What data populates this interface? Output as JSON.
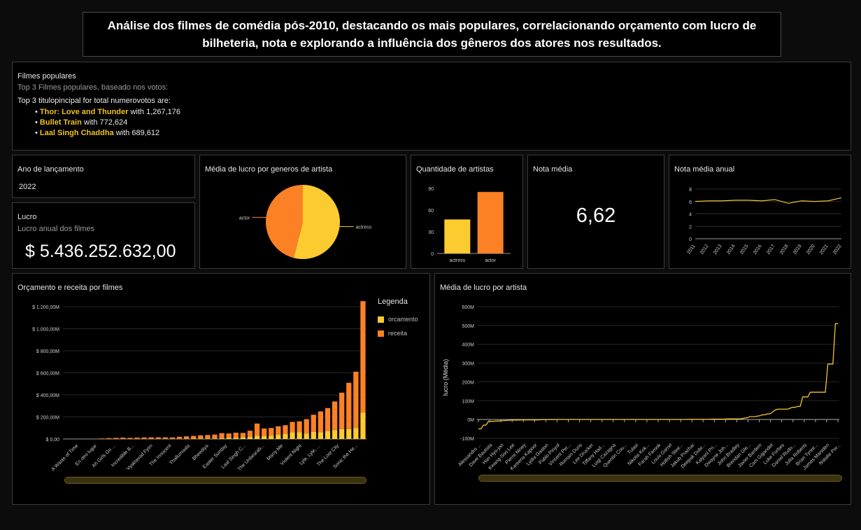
{
  "header": {
    "title": "Análise dos filmes de comédia pós-2010, destacando os mais populares, correlacionando orçamento com lucro de bilheteria, nota e explorando a influência dos gêneros dos atores nos resultados."
  },
  "popular": {
    "title": "Filmes populares",
    "subtitle": "Top 3 Filmes populares, baseado nos votos:",
    "intro": "Top 3 titulopincipal for total numerovotos are:",
    "items": [
      {
        "name": "Thor: Love and Thunder",
        "suffix": " with 1,267,176"
      },
      {
        "name": "Bullet Train",
        "suffix": " with 772,624"
      },
      {
        "name": "Laal Singh Chaddha",
        "suffix": " with 689,612"
      }
    ]
  },
  "year": {
    "title": "Ano de lançamento",
    "value": "2022"
  },
  "profit": {
    "title": "Lucro",
    "subtitle": "Lucro anual dos filmes",
    "value": "$ 5.436.252.632,00"
  },
  "pie": {
    "title": "Média de lucro por generos de artista"
  },
  "count": {
    "title": "Quantidade de artistas"
  },
  "rating": {
    "title": "Nota média",
    "value": "6,62"
  },
  "annual": {
    "title": "Nota média anual"
  },
  "budget": {
    "title": "Orçamento e receita por filmes",
    "legend_title": "Legenda"
  },
  "avgprofit": {
    "title": "Média de lucro por artista"
  },
  "colors": {
    "yellow": "#fccb2f",
    "orange": "#fb8124",
    "line": "#f2c432"
  },
  "chart_data": [
    {
      "type": "pie",
      "title": "Média de lucro por generos de artista",
      "categories": [
        "actress",
        "actor"
      ],
      "values": [
        54,
        46
      ]
    },
    {
      "type": "bar",
      "title": "Quantidade de artistas",
      "categories": [
        "actress",
        "actor"
      ],
      "values": [
        47,
        85
      ],
      "yticks": [
        "0",
        "30",
        "60",
        "90"
      ],
      "ylim": [
        0,
        90
      ]
    },
    {
      "type": "line",
      "title": "Nota média anual",
      "x": [
        "2011",
        "2012",
        "2013",
        "2014",
        "2015",
        "2016",
        "2017",
        "2018",
        "2019",
        "2020",
        "2021",
        "2022"
      ],
      "values": [
        6.0,
        6.1,
        6.1,
        6.2,
        6.2,
        6.1,
        6.3,
        5.7,
        6.1,
        6.0,
        6.1,
        6.6
      ],
      "yticks": [
        "0",
        "2",
        "4",
        "6",
        "8"
      ],
      "ylim": [
        0,
        8
      ]
    },
    {
      "type": "bar",
      "title": "Orçamento e receita por filmes",
      "series": [
        {
          "name": "orcamento"
        },
        {
          "name": "receita"
        }
      ],
      "xlabels": [
        "A Waste of Time",
        "En otro lugar",
        "Ah Girls Go ...",
        "Incredible B...",
        "Vyaktavad Fyim",
        "The Innocent",
        "Thallumaala",
        "Bheediya",
        "Easter Sunday",
        "Laal Singh C...",
        "The Unbearab...",
        "Marry Me",
        "Violent Night",
        "Lyle, Lyle, ...",
        "The Lost City",
        "Sonic the He..."
      ],
      "orcamento": [
        0,
        0,
        0,
        0,
        0,
        0,
        0,
        0,
        0,
        0,
        0,
        0,
        0,
        0,
        0,
        0,
        0,
        2,
        3,
        3,
        4,
        5,
        8,
        10,
        12,
        15,
        20,
        30,
        25,
        30,
        40,
        45,
        60,
        60,
        50,
        65,
        60,
        70,
        80,
        90,
        90,
        100,
        240
      ],
      "receita": [
        0,
        0,
        0,
        0,
        0,
        5,
        8,
        10,
        12,
        10,
        12,
        14,
        15,
        15,
        15,
        14,
        20,
        22,
        25,
        30,
        32,
        35,
        45,
        40,
        45,
        40,
        55,
        110,
        70,
        70,
        75,
        80,
        95,
        100,
        130,
        155,
        190,
        210,
        260,
        330,
        420,
        510,
        1010
      ],
      "yticks": [
        "$ 0,00",
        "$ 200,00M",
        "$ 400,00M",
        "$ 600,00M",
        "$ 800,00M",
        "$ 1.000,00M",
        "$ 1.200,00M"
      ],
      "ylim": [
        0,
        1200
      ]
    },
    {
      "type": "line",
      "title": "Média de lucro por artista",
      "ylabel": "lucro (Média)",
      "xlabels": [
        "Alessandro ...",
        "Dave Bautista",
        "Han Hyo-joo",
        "Kwang-Soo Lee",
        "Pierre Niney",
        "Kareena Kapoor",
        "Lydia Gaston",
        "Pablo Pinyol",
        "Vincent Per...",
        "Romain Duris",
        "Lee Drucker",
        "Tiffany Had...",
        "Luigi Cazagna",
        "Quentin Cou...",
        "Tulasi",
        "Nikolai Kok...",
        "Farah Farook",
        "Louis Garrel",
        "Hollish Stee...",
        "Jakub Prachar",
        "Deepak Dobr...",
        "Kalyani Pri...",
        "Dwayne Joh...",
        "John Bradley",
        "Brendan Gle...",
        "Javier Bardem",
        "Cam Gigandet",
        "Luke Forbes",
        "Daniel Rudo...",
        "Julia Roberts",
        "Brian Tyree...",
        "James Marsden",
        "Natalie Por..."
      ],
      "values": [
        -50,
        -50,
        -30,
        -30,
        -10,
        -10,
        -10,
        -8,
        -8,
        -7,
        -6,
        -5,
        -4,
        -3,
        -3,
        -3,
        -3,
        -2,
        -2,
        -2,
        -2,
        -2,
        -2,
        -2,
        -2,
        -1,
        -1,
        -1,
        -1,
        -1,
        -1,
        0,
        0,
        0,
        0,
        0,
        0,
        0,
        0,
        0,
        0,
        0,
        0,
        0,
        0,
        0,
        0,
        0,
        0,
        0,
        0,
        0,
        0,
        0,
        0,
        0,
        0,
        0,
        0,
        0,
        0,
        0,
        0,
        0,
        0,
        0,
        0,
        0,
        0,
        0,
        0,
        0,
        0,
        0,
        0,
        0,
        0,
        0,
        0,
        0,
        0,
        0,
        0,
        0,
        1,
        1,
        1,
        1,
        1,
        1,
        1,
        1,
        1,
        2,
        2,
        2,
        2,
        2,
        2,
        3,
        3,
        3,
        3,
        3,
        3,
        5,
        8,
        10,
        15,
        15,
        15,
        18,
        20,
        25,
        25,
        30,
        30,
        40,
        50,
        55,
        55,
        55,
        55,
        55,
        60,
        65,
        65,
        70,
        70,
        120,
        120,
        120,
        145,
        145,
        145,
        145,
        145,
        145,
        145,
        295,
        295,
        295,
        510,
        510
      ],
      "yticks": [
        "-100M",
        "0M",
        "100M",
        "200M",
        "300M",
        "400M",
        "500M",
        "600M"
      ],
      "ylim": [
        -100,
        600
      ]
    }
  ]
}
